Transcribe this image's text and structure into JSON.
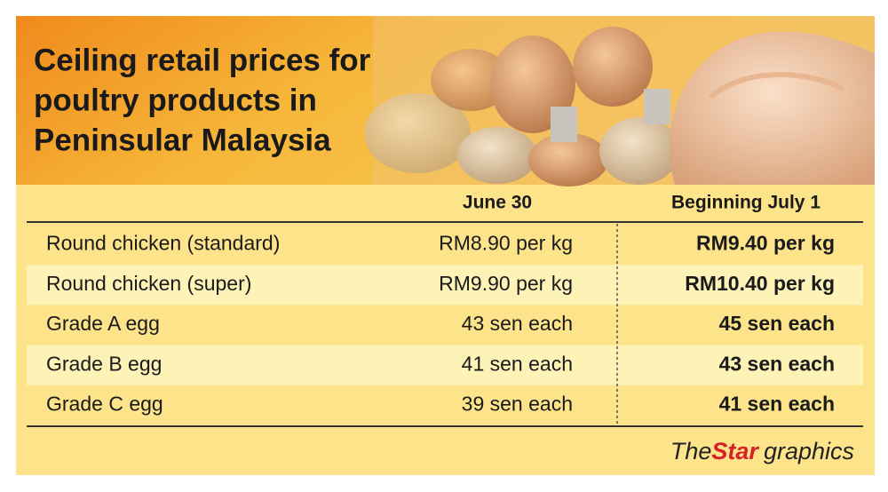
{
  "header": {
    "title": [
      "Ceiling retail prices for",
      "poultry products in",
      "Peninsular Malaysia"
    ]
  },
  "table": {
    "columns": [
      "June 30",
      "Beginning July 1"
    ],
    "rows": [
      [
        "Round chicken (standard)",
        "RM8.90 per kg",
        "RM9.40 per kg"
      ],
      [
        "Round chicken (super)",
        "RM9.90 per kg",
        "RM10.40 per kg"
      ],
      [
        "Grade A egg",
        "43 sen each",
        "45 sen each"
      ],
      [
        "Grade B egg",
        "41 sen each",
        "43 sen each"
      ],
      [
        "Grade C egg",
        "39 sen each",
        "41 sen each"
      ]
    ]
  },
  "credit": {
    "the": "The",
    "star": "Star",
    "suffix": "graphics"
  }
}
